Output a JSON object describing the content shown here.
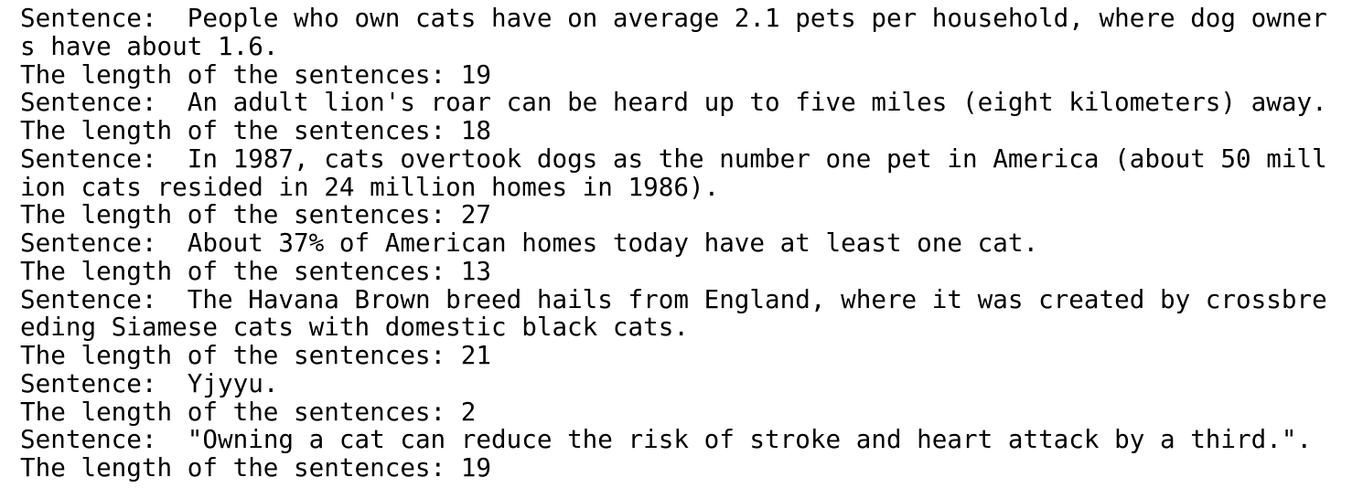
{
  "output": {
    "entries": [
      {
        "sentence_label": "Sentence:",
        "sentence": "People who own cats have on average 2.1 pets per household, where dog owners have about 1.6.",
        "length_label": "The length of the sentences:",
        "length": 19
      },
      {
        "sentence_label": "Sentence:",
        "sentence": "An adult lion's roar can be heard up to five miles (eight kilometers) away.",
        "length_label": "The length of the sentences:",
        "length": 18
      },
      {
        "sentence_label": "Sentence:",
        "sentence": "In 1987, cats overtook dogs as the number one pet in America (about 50 million cats resided in 24 million homes in 1986).",
        "length_label": "The length of the sentences:",
        "length": 27
      },
      {
        "sentence_label": "Sentence:",
        "sentence": "About 37% of American homes today have at least one cat.",
        "length_label": "The length of the sentences:",
        "length": 13
      },
      {
        "sentence_label": "Sentence:",
        "sentence": "The Havana Brown breed hails from England, where it was created by crossbreeding Siamese cats with domestic black cats.",
        "length_label": "The length of the sentences:",
        "length": 21
      },
      {
        "sentence_label": "Sentence:",
        "sentence": "Yjyyu.",
        "length_label": "The length of the sentences:",
        "length": 2
      },
      {
        "sentence_label": "Sentence:",
        "sentence": "\"Owning a cat can reduce the risk of stroke and heart attack by a third.\".",
        "length_label": "The length of the sentences:",
        "length": 19
      }
    ]
  }
}
